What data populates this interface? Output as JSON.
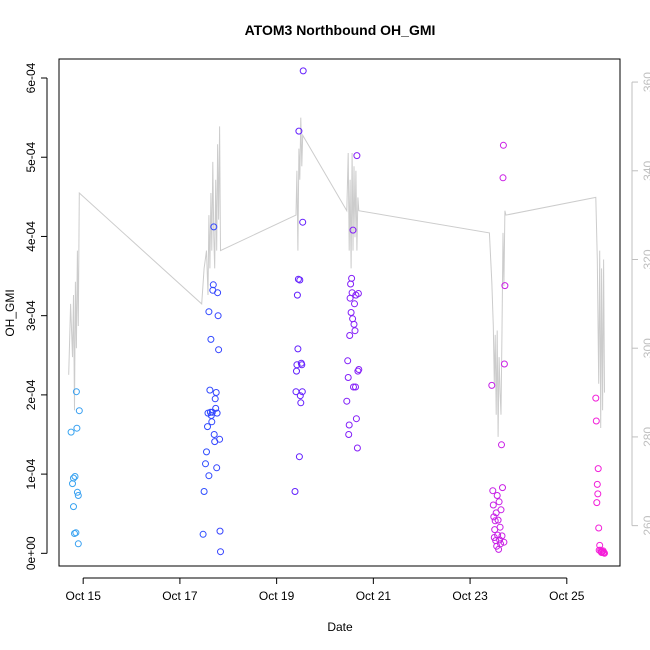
{
  "chart_data": {
    "type": "scatter",
    "title": "ATOM3 Northbound OH_GMI",
    "xlabel": "Date",
    "ylabel": "OH_GMI",
    "x_tick_labels": [
      "Oct 15",
      "Oct 17",
      "Oct 19",
      "Oct 21",
      "Oct 23",
      "Oct 25"
    ],
    "x_tick_values": [
      15,
      17,
      19,
      21,
      23,
      25
    ],
    "xlim": [
      14.5,
      26.1
    ],
    "ylim": [
      -1.6e-05,
      0.000624
    ],
    "y_tick_values": [
      0,
      0.0001,
      0.0002,
      0.0003,
      0.0004,
      0.0005,
      0.0006
    ],
    "y_tick_labels": [
      "0e+00",
      "1e-04",
      "2e-04",
      "3e-04",
      "4e-04",
      "5e-04",
      "6e-04"
    ],
    "y2_lim": [
      250.9,
      365.2
    ],
    "y2_tick_values": [
      260,
      280,
      300,
      320,
      340,
      360
    ],
    "y2_tick_labels": [
      "260",
      "280",
      "300",
      "320",
      "340",
      "360"
    ],
    "grid": false,
    "colors": {
      "line": "#cccccc",
      "axis": "#000000",
      "right_axis": "#bfbfbf",
      "point_gradient": [
        "#3aa5f0",
        "#1f5cff",
        "#5a1fff",
        "#9b1ff5",
        "#c81fe6",
        "#f51fd8"
      ]
    },
    "series": [
      {
        "type": "scatter",
        "axis": "left",
        "points": [
          [
            14.75,
            0.000153
          ],
          [
            14.78,
            8.8e-05
          ],
          [
            14.8,
            9.5e-05
          ],
          [
            14.8,
            5.9e-05
          ],
          [
            14.82,
            2.5e-05
          ],
          [
            14.83,
            9.7e-05
          ],
          [
            14.85,
            2.6e-05
          ],
          [
            14.86,
            0.000204
          ],
          [
            14.87,
            0.000158
          ],
          [
            14.88,
            7.7e-05
          ],
          [
            14.9,
            7.3e-05
          ],
          [
            14.9,
            1.2e-05
          ],
          [
            14.92,
            0.00018
          ],
          [
            17.48,
            2.4e-05
          ],
          [
            17.5,
            7.8e-05
          ],
          [
            17.53,
            0.000113
          ],
          [
            17.55,
            0.000128
          ],
          [
            17.57,
            0.00016
          ],
          [
            17.58,
            0.000177
          ],
          [
            17.6,
            9.8e-05
          ],
          [
            17.6,
            0.000305
          ],
          [
            17.62,
            0.000206
          ],
          [
            17.63,
            0.000178
          ],
          [
            17.64,
            0.00027
          ],
          [
            17.65,
            0.000174
          ],
          [
            17.66,
            0.000166
          ],
          [
            17.67,
            0.000178
          ],
          [
            17.68,
            0.000332
          ],
          [
            17.69,
            0.000339
          ],
          [
            17.7,
            0.000412
          ],
          [
            17.71,
            0.00015
          ],
          [
            17.72,
            0.000141
          ],
          [
            17.73,
            0.000195
          ],
          [
            17.74,
            0.000183
          ],
          [
            17.75,
            0.000203
          ],
          [
            17.76,
            0.000108
          ],
          [
            17.77,
            0.000177
          ],
          [
            17.78,
            0.000329
          ],
          [
            17.79,
            0.0003
          ],
          [
            17.8,
            0.000257
          ],
          [
            17.82,
            0.000144
          ],
          [
            17.83,
            2.8e-05
          ],
          [
            17.84,
            2e-06
          ],
          [
            19.38,
            7.8e-05
          ],
          [
            19.4,
            0.000204
          ],
          [
            19.41,
            0.00023
          ],
          [
            19.42,
            0.000238
          ],
          [
            19.43,
            0.000326
          ],
          [
            19.44,
            0.000258
          ],
          [
            19.45,
            0.000346
          ],
          [
            19.46,
            0.000533
          ],
          [
            19.47,
            0.000122
          ],
          [
            19.48,
            0.000345
          ],
          [
            19.49,
            0.000199
          ],
          [
            19.5,
            0.00019
          ],
          [
            19.51,
            0.00024
          ],
          [
            19.52,
            0.000238
          ],
          [
            19.53,
            0.000204
          ],
          [
            19.54,
            0.000418
          ],
          [
            19.55,
            0.000609
          ],
          [
            20.45,
            0.000192
          ],
          [
            20.47,
            0.000243
          ],
          [
            20.48,
            0.000222
          ],
          [
            20.49,
            0.00015
          ],
          [
            20.5,
            0.000162
          ],
          [
            20.51,
            0.000275
          ],
          [
            20.52,
            0.000322
          ],
          [
            20.53,
            0.00034
          ],
          [
            20.54,
            0.000304
          ],
          [
            20.55,
            0.000347
          ],
          [
            20.56,
            0.000329
          ],
          [
            20.57,
            0.000296
          ],
          [
            20.58,
            0.000408
          ],
          [
            20.59,
            0.00021
          ],
          [
            20.6,
            0.000289
          ],
          [
            20.61,
            0.000315
          ],
          [
            20.62,
            0.000281
          ],
          [
            20.63,
            0.00021
          ],
          [
            20.64,
            0.000326
          ],
          [
            20.65,
            0.00017
          ],
          [
            20.66,
            0.000502
          ],
          [
            20.67,
            0.000133
          ],
          [
            20.68,
            0.00023
          ],
          [
            20.69,
            0.000328
          ],
          [
            20.7,
            0.000232
          ],
          [
            23.45,
            0.000212
          ],
          [
            23.47,
            7.9e-05
          ],
          [
            23.48,
            6.1e-05
          ],
          [
            23.49,
            4.6e-05
          ],
          [
            23.5,
            2e-05
          ],
          [
            23.51,
            3e-05
          ],
          [
            23.52,
            4.1e-05
          ],
          [
            23.53,
            1.6e-05
          ],
          [
            23.54,
            5.1e-05
          ],
          [
            23.55,
            9e-06
          ],
          [
            23.56,
            7.3e-05
          ],
          [
            23.57,
            2.3e-05
          ],
          [
            23.58,
            4.2e-05
          ],
          [
            23.59,
            5e-06
          ],
          [
            23.6,
            6.5e-05
          ],
          [
            23.61,
            1.7e-05
          ],
          [
            23.62,
            3.3e-05
          ],
          [
            23.63,
            1.2e-05
          ],
          [
            23.64,
            5.5e-05
          ],
          [
            23.65,
            0.000137
          ],
          [
            23.66,
            2.2e-05
          ],
          [
            23.67,
            8.3e-05
          ],
          [
            23.68,
            0.000474
          ],
          [
            23.69,
            0.000515
          ],
          [
            23.7,
            1.4e-05
          ],
          [
            23.71,
            0.000239
          ],
          [
            23.72,
            0.000338
          ],
          [
            25.6,
            0.000196
          ],
          [
            25.61,
            0.000167
          ],
          [
            25.62,
            6.4e-05
          ],
          [
            25.63,
            8.7e-05
          ],
          [
            25.64,
            7.5e-05
          ],
          [
            25.65,
            0.000107
          ],
          [
            25.66,
            3.2e-05
          ],
          [
            25.67,
            4e-06
          ],
          [
            25.68,
            1e-05
          ],
          [
            25.7,
            4e-06
          ],
          [
            25.71,
            2e-06
          ],
          [
            25.72,
            1e-06
          ],
          [
            25.73,
            2e-06
          ],
          [
            25.75,
            3e-06
          ],
          [
            25.76,
            1e-06
          ],
          [
            25.77,
            1e-06
          ],
          [
            25.78,
            0.0
          ]
        ]
      },
      {
        "type": "line",
        "axis": "right",
        "points": [
          [
            14.7,
            294
          ],
          [
            14.74,
            310
          ],
          [
            14.78,
            298
          ],
          [
            14.8,
            312
          ],
          [
            14.82,
            286
          ],
          [
            14.84,
            315
          ],
          [
            14.86,
            300
          ],
          [
            14.88,
            322
          ],
          [
            14.9,
            305
          ],
          [
            14.92,
            335
          ],
          [
            17.45,
            310
          ],
          [
            17.5,
            318
          ],
          [
            17.55,
            322
          ],
          [
            17.58,
            312
          ],
          [
            17.6,
            330
          ],
          [
            17.62,
            318
          ],
          [
            17.64,
            335
          ],
          [
            17.66,
            322
          ],
          [
            17.68,
            342
          ],
          [
            17.7,
            325
          ],
          [
            17.72,
            318
          ],
          [
            17.74,
            338
          ],
          [
            17.76,
            322
          ],
          [
            17.78,
            346
          ],
          [
            17.8,
            329
          ],
          [
            17.82,
            350
          ],
          [
            17.84,
            322
          ],
          [
            19.4,
            330
          ],
          [
            19.42,
            340
          ],
          [
            19.44,
            322
          ],
          [
            19.46,
            345
          ],
          [
            19.48,
            338
          ],
          [
            19.5,
            352
          ],
          [
            19.52,
            341
          ],
          [
            19.54,
            348
          ],
          [
            20.45,
            331
          ],
          [
            20.48,
            344
          ],
          [
            20.5,
            322
          ],
          [
            20.52,
            338
          ],
          [
            20.54,
            318
          ],
          [
            20.56,
            344
          ],
          [
            20.58,
            322
          ],
          [
            20.6,
            341
          ],
          [
            20.62,
            325
          ],
          [
            20.64,
            340
          ],
          [
            20.66,
            322
          ],
          [
            20.68,
            334
          ],
          [
            20.7,
            331
          ],
          [
            23.4,
            326
          ],
          [
            23.45,
            315
          ],
          [
            23.48,
            305
          ],
          [
            23.5,
            292
          ],
          [
            23.52,
            303
          ],
          [
            23.54,
            285
          ],
          [
            23.56,
            304
          ],
          [
            23.58,
            280
          ],
          [
            23.6,
            298
          ],
          [
            23.62,
            290
          ],
          [
            23.64,
            285
          ],
          [
            23.66,
            304
          ],
          [
            23.68,
            326
          ],
          [
            23.7,
            314
          ],
          [
            23.72,
            331
          ],
          [
            23.74,
            330
          ],
          [
            25.6,
            334
          ],
          [
            25.63,
            320
          ],
          [
            25.66,
            292
          ],
          [
            25.68,
            322
          ],
          [
            25.7,
            282
          ],
          [
            25.72,
            318
          ],
          [
            25.74,
            286
          ],
          [
            25.76,
            320
          ],
          [
            25.78,
            290
          ]
        ]
      }
    ]
  }
}
